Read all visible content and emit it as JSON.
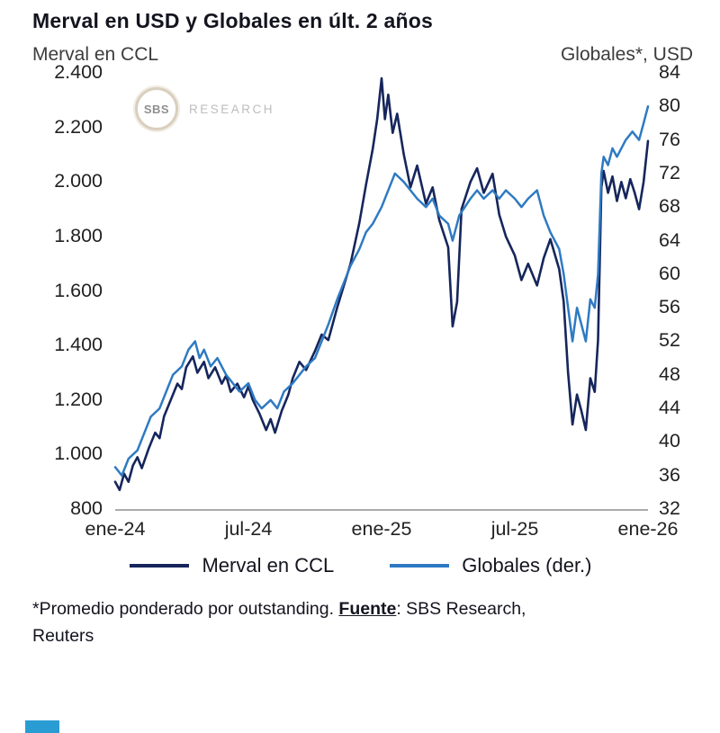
{
  "title": "Merval en USD y Globales en últ. 2 años",
  "left_axis_title": "Merval en CCL",
  "right_axis_title": "Globales*, USD",
  "watermark": {
    "logo": "SBS",
    "text": "RESEARCH"
  },
  "legend": [
    {
      "label": "Merval en CCL",
      "color": "#16265c"
    },
    {
      "label": "Globales (der.)",
      "color": "#2e7ac2"
    }
  ],
  "footnote": {
    "pre": "*Promedio ponderado por outstanding. ",
    "fuente_label": "Fuente",
    "post": ": SBS Research,",
    "line2": "Reuters"
  },
  "colors": {
    "accent_bar": "#2a9cd4",
    "axis_line": "#ababab"
  },
  "chart_data": {
    "type": "line",
    "title": "Merval en USD y Globales en últ. 2 años",
    "x_unit": "months since ene-24",
    "x_max": 24,
    "x_tick_labels": [
      "ene-24",
      "jul-24",
      "ene-25",
      "jul-25",
      "ene-26"
    ],
    "x_tick_positions": [
      0,
      6,
      12,
      18,
      24
    ],
    "grid": false,
    "legend_position": "bottom",
    "left_axis": {
      "label": "Merval en CCL",
      "min": 800,
      "max": 2400,
      "step": 200,
      "tick_labels": [
        "2.400",
        "2.200",
        "2.000",
        "1.800",
        "1.600",
        "1.400",
        "1.200",
        "1.000",
        "800"
      ]
    },
    "right_axis": {
      "label": "Globales*, USD",
      "min": 32,
      "max": 84,
      "step": 4,
      "tick_labels": [
        "84",
        "80",
        "76",
        "72",
        "68",
        "64",
        "60",
        "56",
        "52",
        "48",
        "44",
        "40",
        "36",
        "32"
      ]
    },
    "series": [
      {
        "name": "Merval en CCL",
        "axis": "left",
        "color": "#16265c",
        "width": 2.6,
        "x": [
          0,
          0.2,
          0.4,
          0.6,
          0.8,
          1,
          1.2,
          1.5,
          1.8,
          2,
          2.2,
          2.5,
          2.8,
          3,
          3.2,
          3.5,
          3.7,
          4,
          4.2,
          4.5,
          4.8,
          5,
          5.2,
          5.5,
          5.8,
          6,
          6.2,
          6.5,
          6.8,
          7,
          7.2,
          7.5,
          7.8,
          8,
          8.3,
          8.6,
          9,
          9.3,
          9.6,
          10,
          10.3,
          10.6,
          11,
          11.3,
          11.6,
          11.8,
          12,
          12.15,
          12.3,
          12.5,
          12.7,
          13,
          13.3,
          13.6,
          14,
          14.3,
          14.6,
          15,
          15.2,
          15.4,
          15.6,
          16,
          16.3,
          16.6,
          17,
          17.3,
          17.6,
          18,
          18.3,
          18.6,
          19,
          19.3,
          19.6,
          20,
          20.2,
          20.4,
          20.6,
          20.8,
          21,
          21.2,
          21.4,
          21.6,
          21.75,
          21.9,
          22,
          22.2,
          22.4,
          22.6,
          22.8,
          23,
          23.2,
          23.4,
          23.6,
          23.8,
          24
        ],
        "values": [
          900,
          870,
          930,
          900,
          960,
          990,
          950,
          1020,
          1080,
          1060,
          1140,
          1200,
          1260,
          1240,
          1320,
          1360,
          1300,
          1340,
          1280,
          1320,
          1260,
          1290,
          1230,
          1260,
          1210,
          1250,
          1200,
          1150,
          1090,
          1130,
          1080,
          1160,
          1220,
          1280,
          1340,
          1310,
          1380,
          1440,
          1420,
          1540,
          1620,
          1700,
          1850,
          1990,
          2120,
          2230,
          2380,
          2230,
          2320,
          2180,
          2250,
          2100,
          1980,
          2060,
          1920,
          1980,
          1860,
          1760,
          1470,
          1560,
          1900,
          2000,
          2050,
          1960,
          2030,
          1880,
          1800,
          1730,
          1640,
          1700,
          1620,
          1720,
          1790,
          1680,
          1560,
          1300,
          1110,
          1220,
          1160,
          1090,
          1280,
          1230,
          1420,
          1980,
          2040,
          1960,
          2020,
          1930,
          2000,
          1940,
          2010,
          1960,
          1900,
          2000,
          2150
        ]
      },
      {
        "name": "Globales (der.)",
        "axis": "right",
        "color": "#2e7ac2",
        "width": 2.5,
        "x": [
          0,
          0.3,
          0.6,
          1,
          1.3,
          1.6,
          2,
          2.3,
          2.6,
          3,
          3.3,
          3.6,
          3.8,
          4,
          4.3,
          4.6,
          5,
          5.3,
          5.6,
          6,
          6.3,
          6.6,
          7,
          7.3,
          7.6,
          8,
          8.3,
          8.6,
          9,
          9.3,
          9.6,
          10,
          10.3,
          10.6,
          11,
          11.3,
          11.6,
          12,
          12.3,
          12.6,
          13,
          13.3,
          13.6,
          14,
          14.3,
          14.6,
          15,
          15.2,
          15.5,
          16,
          16.3,
          16.6,
          17,
          17.3,
          17.6,
          18,
          18.3,
          18.6,
          19,
          19.3,
          19.6,
          20,
          20.2,
          20.4,
          20.6,
          20.8,
          21,
          21.2,
          21.4,
          21.6,
          21.75,
          21.9,
          22,
          22.2,
          22.4,
          22.6,
          23,
          23.3,
          23.6,
          23.8,
          24
        ],
        "values": [
          37,
          36,
          38,
          39,
          41,
          43,
          44,
          46,
          48,
          49,
          51,
          52,
          50,
          51,
          49,
          50,
          48,
          47,
          46,
          47,
          45,
          44,
          45,
          44,
          46,
          47,
          48,
          49,
          50,
          52,
          54,
          57,
          59,
          61,
          63,
          65,
          66,
          68,
          70,
          72,
          71,
          70,
          69,
          68,
          69,
          67,
          66,
          64,
          67,
          69,
          70,
          69,
          70,
          69,
          70,
          69,
          68,
          69,
          70,
          67,
          65,
          63,
          60,
          56,
          52,
          56,
          54,
          52,
          57,
          56,
          60,
          72,
          74,
          73,
          75,
          74,
          76,
          77,
          76,
          78,
          80
        ]
      }
    ]
  }
}
